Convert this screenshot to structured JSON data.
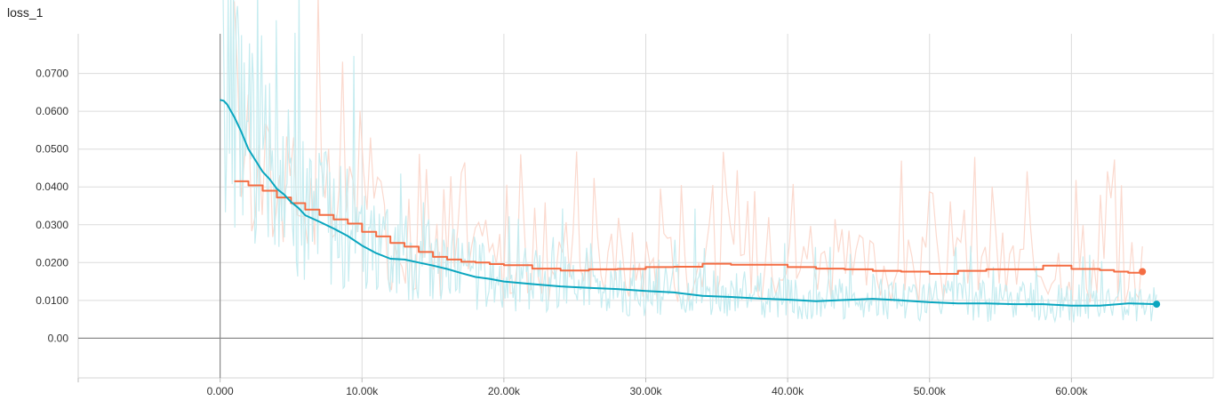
{
  "chart_data": {
    "type": "line",
    "title": "loss_1",
    "xlabel": "",
    "ylabel": "",
    "xlim": [
      -10000,
      70000
    ],
    "ylim": [
      -0.0105,
      0.0805
    ],
    "grid": true,
    "x_ticks": [
      {
        "value": 0,
        "label": "0.000"
      },
      {
        "value": 10000,
        "label": "10.00k"
      },
      {
        "value": 20000,
        "label": "20.00k"
      },
      {
        "value": 30000,
        "label": "30.00k"
      },
      {
        "value": 40000,
        "label": "40.00k"
      },
      {
        "value": 50000,
        "label": "50.00k"
      },
      {
        "value": 60000,
        "label": "60.00k"
      }
    ],
    "y_ticks": [
      {
        "value": 0.0,
        "label": "0.00"
      },
      {
        "value": 0.01,
        "label": "0.0100"
      },
      {
        "value": 0.02,
        "label": "0.0200"
      },
      {
        "value": 0.03,
        "label": "0.0300"
      },
      {
        "value": 0.04,
        "label": "0.0400"
      },
      {
        "value": 0.05,
        "label": "0.0500"
      },
      {
        "value": 0.06,
        "label": "0.0600"
      },
      {
        "value": 0.07,
        "label": "0.0700"
      }
    ],
    "series": [
      {
        "color": "#f46d43",
        "raw_color": "#fbd7cb",
        "step": true,
        "x": [
          1000,
          2000,
          3000,
          4000,
          5000,
          6000,
          7000,
          8000,
          9000,
          10000,
          11000,
          12000,
          13000,
          14000,
          15000,
          16000,
          17000,
          18000,
          19000,
          20000,
          22000,
          24000,
          26000,
          28000,
          30000,
          32000,
          34000,
          36000,
          38000,
          40000,
          42000,
          44000,
          46000,
          48000,
          50000,
          52000,
          54000,
          56000,
          58000,
          60000,
          62000,
          63000,
          64000,
          65000
        ],
        "y": [
          0.0415,
          0.0404,
          0.039,
          0.0372,
          0.0357,
          0.034,
          0.0326,
          0.0314,
          0.0303,
          0.0281,
          0.0269,
          0.0252,
          0.0242,
          0.0228,
          0.0215,
          0.0208,
          0.0202,
          0.02,
          0.0196,
          0.0193,
          0.0184,
          0.0179,
          0.0182,
          0.0183,
          0.0188,
          0.0189,
          0.0197,
          0.0194,
          0.0194,
          0.0188,
          0.0184,
          0.0182,
          0.0178,
          0.0176,
          0.017,
          0.0178,
          0.0182,
          0.0182,
          0.0192,
          0.0183,
          0.018,
          0.0176,
          0.0173,
          0.0176
        ]
      },
      {
        "color": "#0aa6bf",
        "raw_color": "#c3ebef",
        "step": false,
        "x": [
          0,
          250,
          500,
          1000,
          1500,
          2000,
          2500,
          3000,
          3500,
          4000,
          4500,
          5000,
          5500,
          6000,
          7000,
          8000,
          9000,
          10000,
          11000,
          12000,
          13000,
          14000,
          15000,
          16000,
          17000,
          18000,
          19000,
          20000,
          22000,
          24000,
          26000,
          28000,
          30000,
          32000,
          34000,
          36000,
          38000,
          40000,
          42000,
          44000,
          46000,
          48000,
          50000,
          52000,
          54000,
          56000,
          58000,
          60000,
          62000,
          64000,
          65000,
          66000
        ],
        "y": [
          0.063,
          0.0628,
          0.0618,
          0.0585,
          0.0545,
          0.05,
          0.047,
          0.044,
          0.042,
          0.0395,
          0.038,
          0.036,
          0.0345,
          0.0325,
          0.0308,
          0.029,
          0.027,
          0.0245,
          0.0225,
          0.021,
          0.0208,
          0.02,
          0.0192,
          0.0183,
          0.0172,
          0.0162,
          0.0157,
          0.015,
          0.0143,
          0.0137,
          0.0133,
          0.013,
          0.0125,
          0.0121,
          0.0112,
          0.0109,
          0.0105,
          0.0102,
          0.0098,
          0.0101,
          0.0104,
          0.01,
          0.0095,
          0.0092,
          0.0092,
          0.009,
          0.009,
          0.0086,
          0.0086,
          0.0092,
          0.0091,
          0.009
        ]
      }
    ]
  }
}
